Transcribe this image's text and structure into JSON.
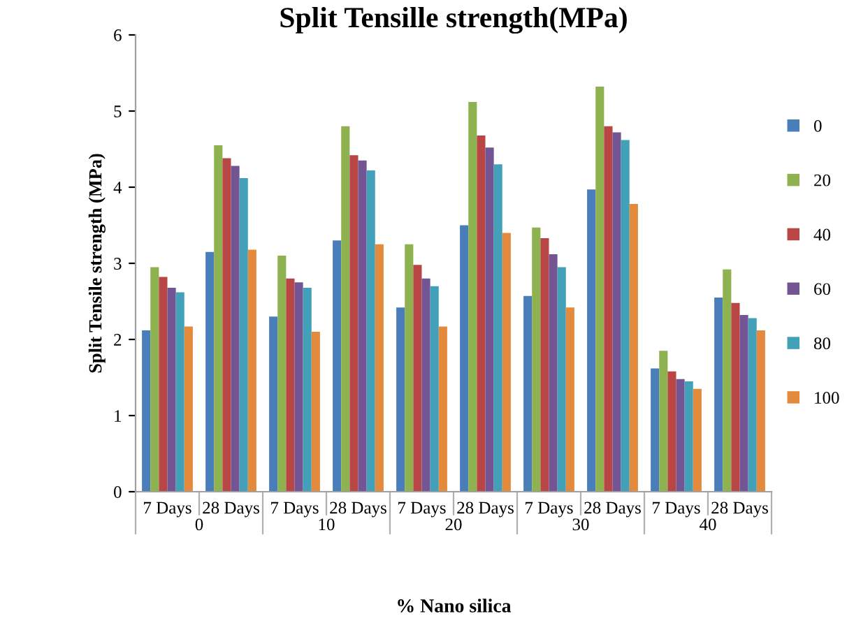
{
  "chart_data": {
    "type": "bar",
    "title": "Split Tensille strength(MPa)",
    "xlabel": "% Nano silica",
    "ylabel": "Split Tensile strength (MPa)",
    "categories": [
      "7 Days",
      "28 Days",
      "7 Days",
      "28 Days",
      "7 Days",
      "28 Days",
      "7 Days",
      "28 Days",
      "7 Days",
      "28 Days"
    ],
    "annotations": [
      "0",
      "10",
      "20",
      "30",
      "40"
    ],
    "series": [
      {
        "name": "0",
        "color": "#4a7ebb",
        "values": [
          2.12,
          3.15,
          2.3,
          3.3,
          2.42,
          3.5,
          2.57,
          3.97,
          1.62,
          2.55
        ]
      },
      {
        "name": "20",
        "color": "#8eb24f",
        "values": [
          2.95,
          4.55,
          3.1,
          4.8,
          3.25,
          5.12,
          3.47,
          5.32,
          1.85,
          2.92
        ]
      },
      {
        "name": "40",
        "color": "#b84644",
        "values": [
          2.82,
          4.38,
          2.8,
          4.42,
          2.98,
          4.68,
          3.33,
          4.8,
          1.58,
          2.48
        ]
      },
      {
        "name": "60",
        "color": "#735594",
        "values": [
          2.68,
          4.28,
          2.75,
          4.35,
          2.8,
          4.52,
          3.12,
          4.72,
          1.48,
          2.32
        ]
      },
      {
        "name": "80",
        "color": "#42a0b8",
        "values": [
          2.62,
          4.12,
          2.68,
          4.22,
          2.7,
          4.3,
          2.95,
          4.62,
          1.45,
          2.28
        ]
      },
      {
        "name": "100",
        "color": "#e38a3c",
        "values": [
          2.17,
          3.18,
          2.1,
          3.25,
          2.17,
          3.4,
          2.42,
          3.78,
          1.35,
          2.12
        ]
      }
    ],
    "ylim": [
      0,
      6
    ],
    "yticks": [
      0,
      1,
      2,
      3,
      4,
      5,
      6
    ],
    "grid": false,
    "legend": "right"
  }
}
